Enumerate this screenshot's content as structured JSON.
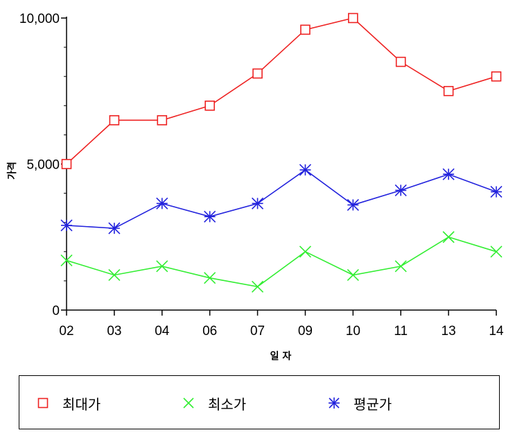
{
  "chart_data": {
    "type": "line",
    "title": "",
    "xlabel": "일 자",
    "ylabel": "가격",
    "categories": [
      "02",
      "03",
      "04",
      "06",
      "07",
      "09",
      "10",
      "11",
      "13",
      "14"
    ],
    "yticks": [
      "0",
      "5,000",
      "10,000"
    ],
    "ylim": [
      0,
      10000
    ],
    "grid": false,
    "legend": "bottom",
    "series": [
      {
        "name": "최대가",
        "marker": "square",
        "color": "#ee2222",
        "values": [
          5000,
          6500,
          6500,
          7000,
          8100,
          9600,
          10000,
          8500,
          7500,
          8000
        ]
      },
      {
        "name": "최소가",
        "marker": "x",
        "color": "#33ee33",
        "values": [
          1700,
          1200,
          1500,
          1100,
          800,
          2000,
          1200,
          1500,
          2500,
          2000
        ]
      },
      {
        "name": "평균가",
        "marker": "star",
        "color": "#2222dd",
        "values": [
          2900,
          2800,
          3650,
          3200,
          3650,
          4800,
          3600,
          4100,
          4650,
          4050
        ]
      }
    ]
  }
}
